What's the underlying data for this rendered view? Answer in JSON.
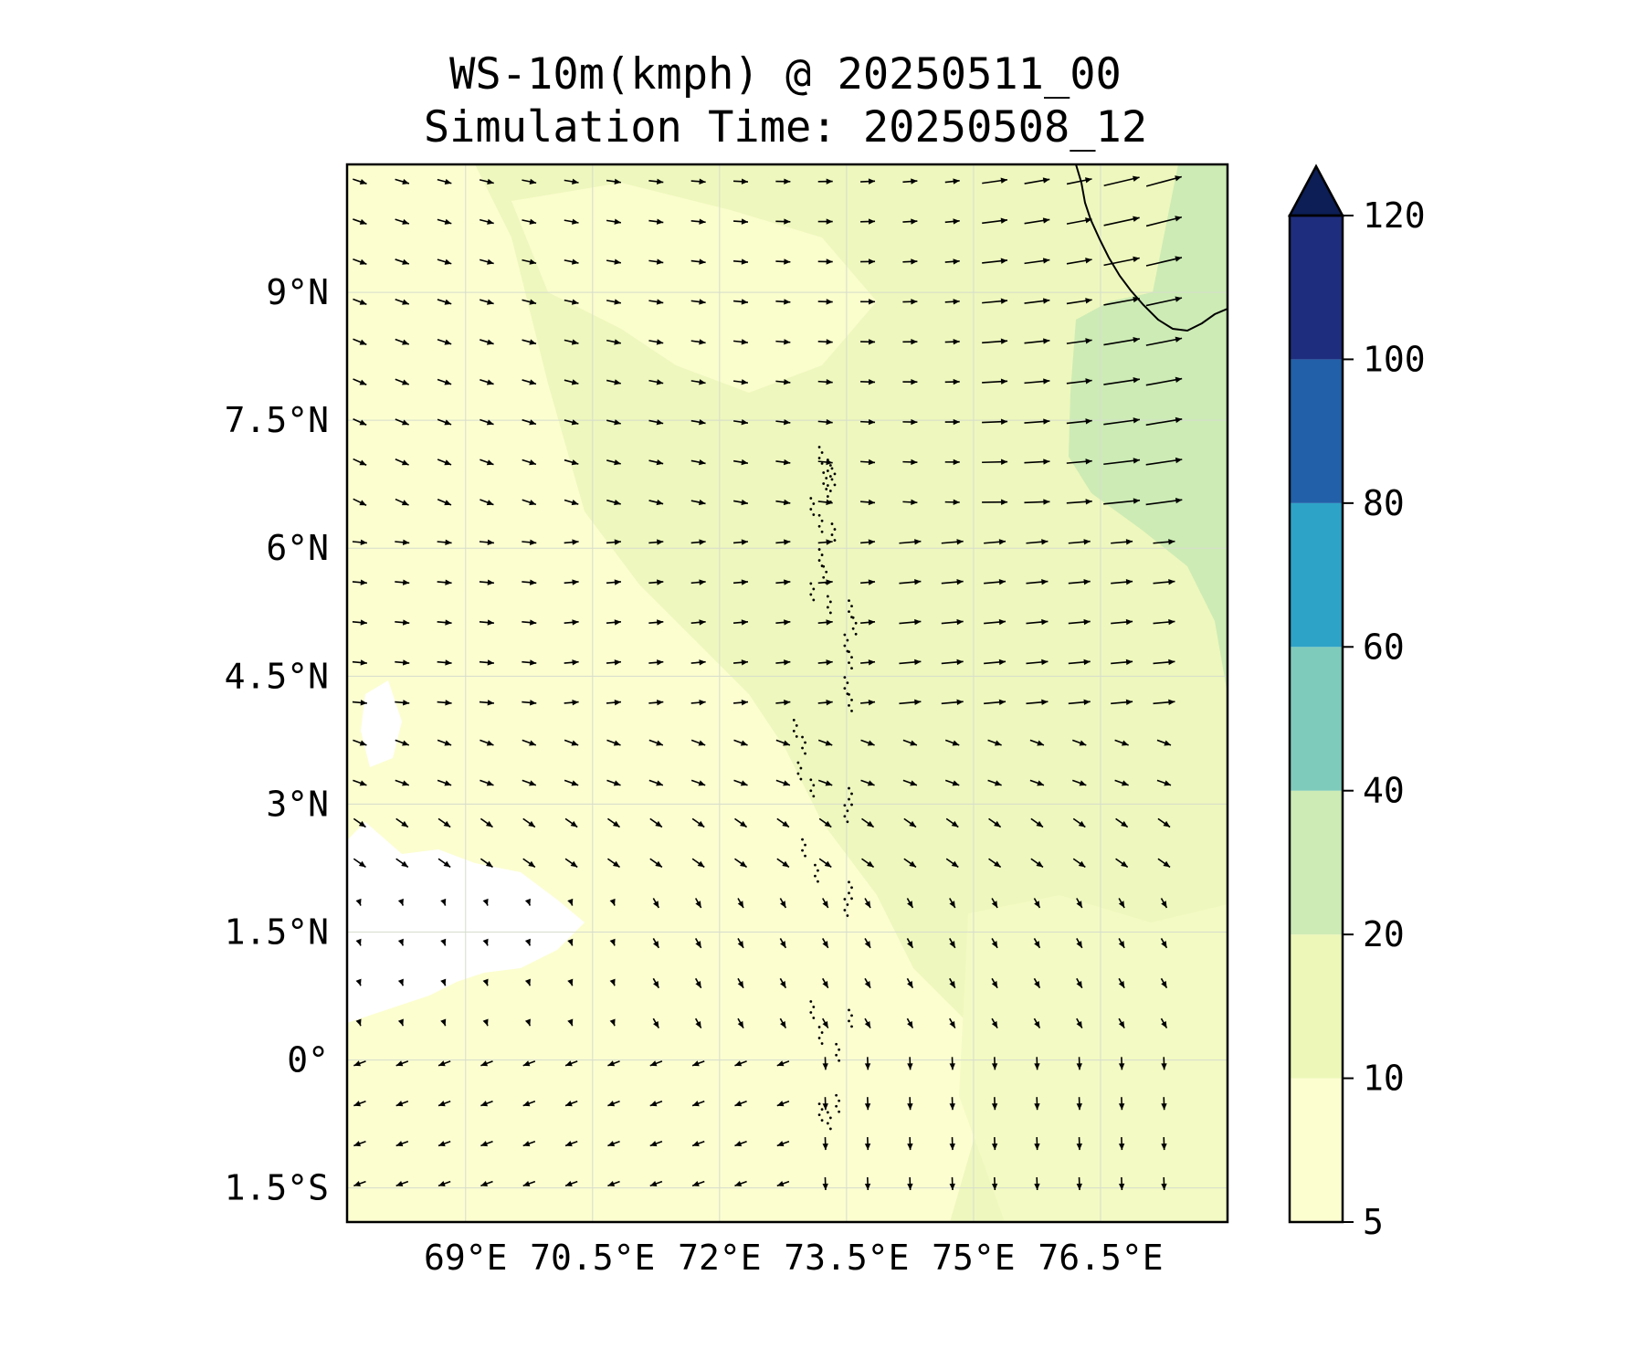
{
  "title": {
    "line1": "WS-10m(kmph) @ 20250511_00",
    "line2": "Simulation Time: 20250508_12"
  },
  "map": {
    "variable": "10 m wind speed",
    "units": "kmph",
    "lon_range": [
      67.6,
      78.0
    ],
    "lat_range": [
      -1.9,
      10.5
    ],
    "lat_ticks": [
      {
        "value": 9.0,
        "label": "9°N"
      },
      {
        "value": 7.5,
        "label": "7.5°N"
      },
      {
        "value": 6.0,
        "label": "6°N"
      },
      {
        "value": 4.5,
        "label": "4.5°N"
      },
      {
        "value": 3.0,
        "label": "3°N"
      },
      {
        "value": 1.5,
        "label": "1.5°N"
      },
      {
        "value": 0.0,
        "label": "0°"
      },
      {
        "value": -1.5,
        "label": "1.5°S"
      }
    ],
    "lon_ticks": [
      {
        "value": 69.0,
        "label": "69°E"
      },
      {
        "value": 70.5,
        "label": "70.5°E"
      },
      {
        "value": 72.0,
        "label": "72°E"
      },
      {
        "value": 73.5,
        "label": "73.5°E"
      },
      {
        "value": 75.0,
        "label": "75°E"
      },
      {
        "value": 76.5,
        "label": "76.5°E"
      }
    ],
    "gridlines": true,
    "wind_vectors": true
  },
  "colorbar": {
    "extend": "max",
    "levels": [
      5,
      10,
      20,
      40,
      60,
      80,
      100,
      120
    ],
    "labels": [
      "5",
      "10",
      "20",
      "40",
      "60",
      "80",
      "100",
      "120"
    ],
    "colors": [
      "#fcfed0",
      "#ecf7b8",
      "#cdebb5",
      "#7fcbbb",
      "#2ea3c8",
      "#2260a9",
      "#1f2d7e",
      "#0c1e55"
    ]
  },
  "colors": {
    "calm_white": "#ffffff",
    "light_fill": "#fcfed0",
    "mid_fill": "#ecf7b8",
    "strong_fill": "#cdebb5",
    "arrow": "#000000"
  }
}
